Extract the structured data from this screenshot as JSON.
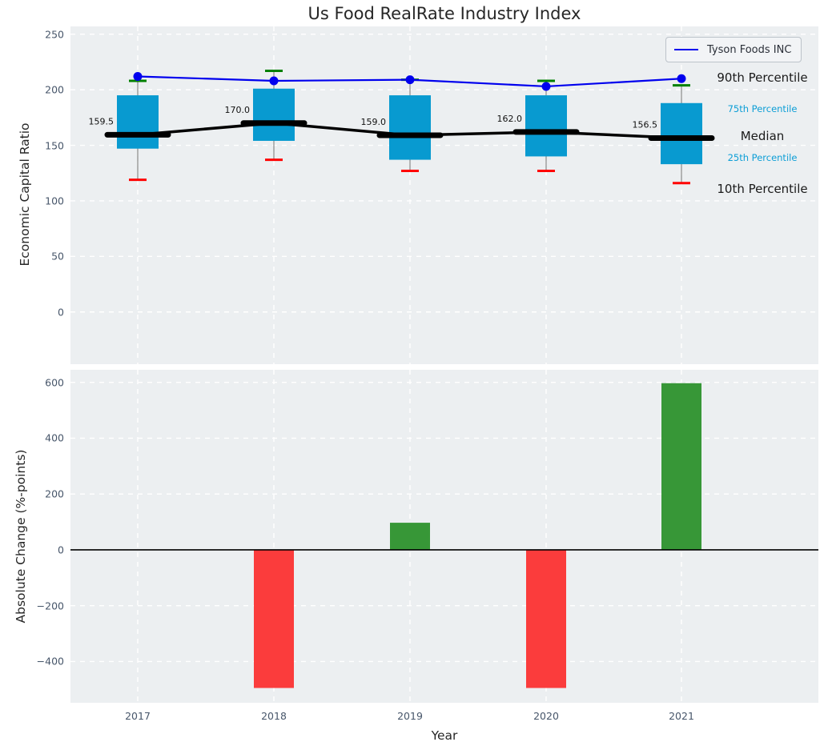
{
  "title": "Us Food RealRate Industry Index",
  "chart_data": [
    {
      "type": "box",
      "title": "Us Food RealRate Industry Index",
      "ylabel": "Economic Capital Ratio",
      "categories": [
        "2017",
        "2018",
        "2019",
        "2020",
        "2021"
      ],
      "yticks": [
        250,
        200,
        150,
        100,
        50,
        0
      ],
      "ylim": [
        -47,
        257
      ],
      "grid": true,
      "legend_position": "upper right",
      "series": [
        {
          "name": "Tyson Foods INC",
          "type": "line+marker",
          "color": "#0000ee",
          "values": [
            212,
            208,
            209,
            203,
            210
          ]
        },
        {
          "name": "Median",
          "type": "line",
          "color": "#000000",
          "values": [
            159.5,
            170.0,
            159.0,
            162.0,
            156.5
          ]
        }
      ],
      "boxes": [
        {
          "year": "2017",
          "p10": 119,
          "p25": 147,
          "median": 159.5,
          "p75": 195,
          "p90": 208
        },
        {
          "year": "2018",
          "p10": 137,
          "p25": 154,
          "median": 170.0,
          "p75": 201,
          "p90": 217
        },
        {
          "year": "2019",
          "p10": 127,
          "p25": 137,
          "median": 159.0,
          "p75": 195,
          "p90": 209
        },
        {
          "year": "2020",
          "p10": 127,
          "p25": 140,
          "median": 162.0,
          "p75": 195,
          "p90": 208
        },
        {
          "year": "2021",
          "p10": 116,
          "p25": 133,
          "median": 156.5,
          "p75": 188,
          "p90": 204
        }
      ],
      "median_labels": [
        "159.5",
        "170.0",
        "159.0",
        "162.0",
        "156.5"
      ],
      "right_labels": [
        {
          "text": "90th Percentile",
          "anchor_value": 211,
          "size": "large",
          "color": "#1a1a1a"
        },
        {
          "text": "75th Percentile",
          "anchor_value": 183,
          "size": "small",
          "color": "#0c9ed6"
        },
        {
          "text": "Median",
          "anchor_value": 158,
          "size": "large",
          "color": "#1a1a1a"
        },
        {
          "text": "25th Percentile",
          "anchor_value": 139,
          "size": "small",
          "color": "#0c9ed6"
        },
        {
          "text": "10th Percentile",
          "anchor_value": 111,
          "size": "large",
          "color": "#1a1a1a"
        }
      ],
      "colors": {
        "box": "#089ad0",
        "median": "#000000",
        "cap_high": "#008000",
        "cap_low": "#ff0000",
        "whisker": "#888888",
        "tyson": "#0000ee"
      }
    },
    {
      "type": "bar",
      "ylabel": "Absolute Change (%-points)",
      "xlabel": "Year",
      "categories": [
        "2017",
        "2018",
        "2019",
        "2020",
        "2021"
      ],
      "values": [
        0,
        -495,
        97,
        -495,
        597
      ],
      "yticks": [
        600,
        400,
        200,
        0,
        -200,
        -400
      ],
      "ylim": [
        -548,
        645
      ],
      "zero_line": true,
      "grid": true,
      "colors": {
        "positive": "#379737",
        "negative": "#fb3c3c"
      }
    }
  ]
}
